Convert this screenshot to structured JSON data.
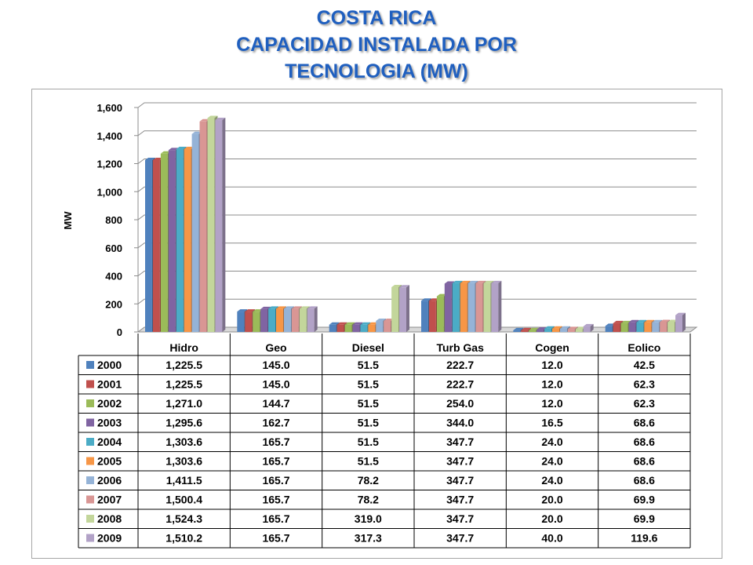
{
  "title": {
    "line1": "COSTA RICA",
    "line2": "CAPACIDAD INSTALADA POR",
    "line3": "TECNOLOGIA (MW)"
  },
  "chart_data": {
    "type": "bar",
    "ylabel": "MW",
    "ylim": [
      0,
      1600
    ],
    "yticks": [
      "0",
      "200",
      "400",
      "600",
      "800",
      "1,000",
      "1,200",
      "1,400",
      "1,600"
    ],
    "grid": true,
    "legend": "data-table",
    "categories": [
      "Hidro",
      "Geo",
      "Diesel",
      "Turb Gas",
      "Cogen",
      "Eolico"
    ],
    "series": [
      {
        "name": "2000",
        "color": "#4f81bd",
        "values": [
          1225.5,
          145.0,
          51.5,
          222.7,
          12.0,
          42.5
        ],
        "labels": [
          "1,225.5",
          "145.0",
          "51.5",
          "222.7",
          "12.0",
          "42.5"
        ]
      },
      {
        "name": "2001",
        "color": "#c0504d",
        "values": [
          1225.5,
          145.0,
          51.5,
          222.7,
          12.0,
          62.3
        ],
        "labels": [
          "1,225.5",
          "145.0",
          "51.5",
          "222.7",
          "12.0",
          "62.3"
        ]
      },
      {
        "name": "2002",
        "color": "#9bbb59",
        "values": [
          1271.0,
          144.7,
          51.5,
          254.0,
          12.0,
          62.3
        ],
        "labels": [
          "1,271.0",
          "144.7",
          "51.5",
          "254.0",
          "12.0",
          "62.3"
        ]
      },
      {
        "name": "2003",
        "color": "#8064a2",
        "values": [
          1295.6,
          162.7,
          51.5,
          344.0,
          16.5,
          68.6
        ],
        "labels": [
          "1,295.6",
          "162.7",
          "51.5",
          "344.0",
          "16.5",
          "68.6"
        ]
      },
      {
        "name": "2004",
        "color": "#4bacc6",
        "values": [
          1303.6,
          165.7,
          51.5,
          347.7,
          24.0,
          68.6
        ],
        "labels": [
          "1,303.6",
          "165.7",
          "51.5",
          "347.7",
          "24.0",
          "68.6"
        ]
      },
      {
        "name": "2005",
        "color": "#f79646",
        "values": [
          1303.6,
          165.7,
          51.5,
          347.7,
          24.0,
          68.6
        ],
        "labels": [
          "1,303.6",
          "165.7",
          "51.5",
          "347.7",
          "24.0",
          "68.6"
        ]
      },
      {
        "name": "2006",
        "color": "#95b3d7",
        "values": [
          1411.5,
          165.7,
          78.2,
          347.7,
          24.0,
          68.6
        ],
        "labels": [
          "1,411.5",
          "165.7",
          "78.2",
          "347.7",
          "24.0",
          "68.6"
        ]
      },
      {
        "name": "2007",
        "color": "#d99694",
        "values": [
          1500.4,
          165.7,
          78.2,
          347.7,
          20.0,
          69.9
        ],
        "labels": [
          "1,500.4",
          "165.7",
          "78.2",
          "347.7",
          "20.0",
          "69.9"
        ]
      },
      {
        "name": "2008",
        "color": "#c3d69b",
        "values": [
          1524.3,
          165.7,
          319.0,
          347.7,
          20.0,
          69.9
        ],
        "labels": [
          "1,524.3",
          "165.7",
          "319.0",
          "347.7",
          "20.0",
          "69.9"
        ]
      },
      {
        "name": "2009",
        "color": "#b2a2c7",
        "values": [
          1510.2,
          165.7,
          317.3,
          347.7,
          40.0,
          119.6
        ],
        "labels": [
          "1,510.2",
          "165.7",
          "317.3",
          "347.7",
          "40.0",
          "119.6"
        ]
      }
    ]
  }
}
